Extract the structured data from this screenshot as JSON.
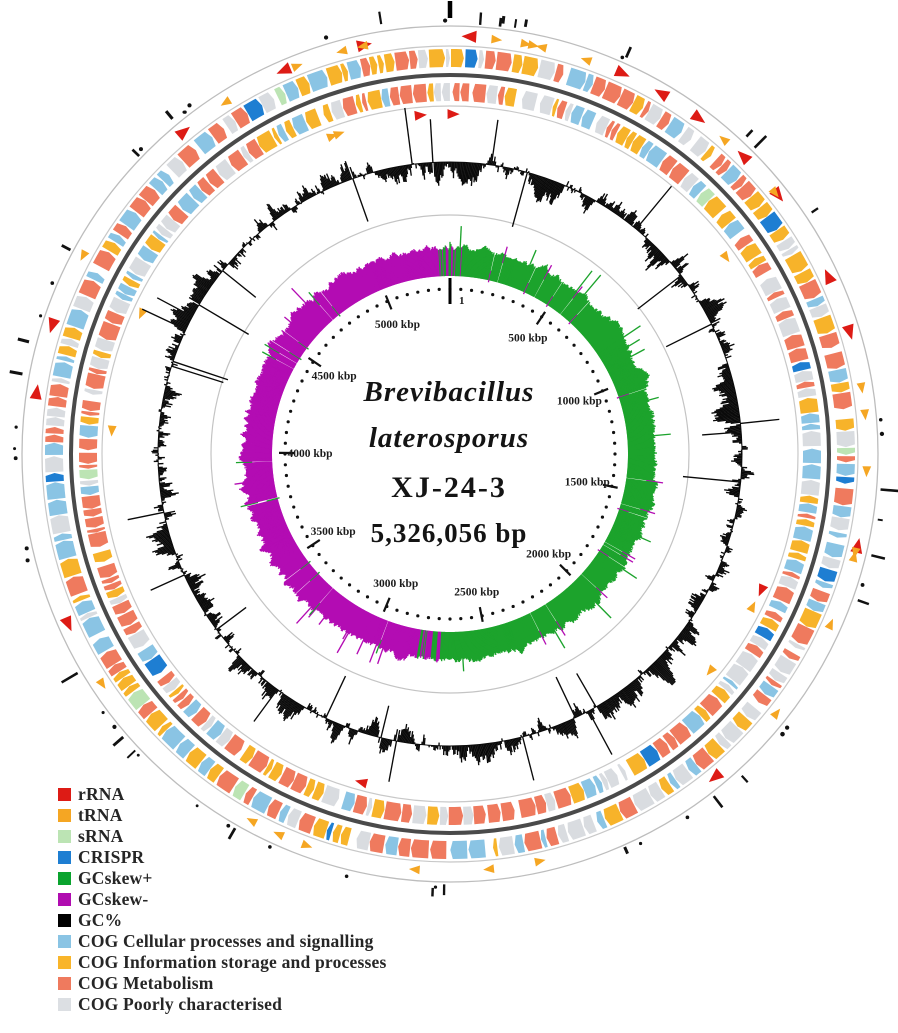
{
  "chart_data": {
    "type": "circular-genome-map",
    "organism": "Brevibacillus laterosporus",
    "organism_line1": "Brevibacillus",
    "organism_line2": "laterosporus",
    "strain": "XJ-24-3",
    "genome_size_label": "5,326,056 bp",
    "genome_size_bp": 5326056,
    "scale": {
      "unit": "kbp",
      "interval_kbp": 500,
      "origin_label": "1",
      "labels": [
        "500 kbp",
        "1000 kbp",
        "1500 kbp",
        "2000 kbp",
        "2500 kbp",
        "3000 kbp",
        "3500 kbp",
        "4000 kbp",
        "4500 kbp",
        "5000 kbp"
      ],
      "values_kbp": [
        500,
        1000,
        1500,
        2000,
        2500,
        3000,
        3500,
        4000,
        4500,
        5000
      ]
    },
    "rings_outside_in": [
      {
        "name": "outer-position-ticks",
        "description": "scattered black tick marks outside the outer circle; long black tick at origin (position 1, top)"
      },
      {
        "name": "rna-feature-ring",
        "description": "rRNA (red) and tRNA (orange) gene arrows",
        "rrna_positions_kbp_approx": [
          40,
          360,
          450,
          540,
          660,
          765,
          960,
          1080,
          1520,
          2080,
          3640,
          4120,
          4260,
          4740,
          4980,
          5150
        ]
      },
      {
        "name": "cog-forward-strand",
        "description": "CDS arrows coloured by COG category, forward strand"
      },
      {
        "name": "cog-reverse-strand",
        "description": "CDS arrows coloured by COG category, reverse strand"
      },
      {
        "name": "gc-content-ring",
        "description": "GC% plotted as black deviation from circular baseline"
      },
      {
        "name": "gc-skew-ring",
        "description": "GC skew: positive (green) approx 0-2750 kbp, negative (purple) approx 2750-5326 kbp",
        "skew_transition_kbp_approx": [
          0,
          2750
        ]
      },
      {
        "name": "scale-ring",
        "description": "dotted position circle with tick dashes every 500 kbp and labels"
      }
    ],
    "legend": [
      {
        "label": "rRNA",
        "color": "#dd1b15"
      },
      {
        "label": "tRNA",
        "color": "#f5a623"
      },
      {
        "label": "sRNA",
        "color": "#bce4b4"
      },
      {
        "label": "CRISPR",
        "color": "#1e7ed2"
      },
      {
        "label": "GCskew+",
        "color": "#0aa32e"
      },
      {
        "label": "GCskew-",
        "color": "#b00cb0"
      },
      {
        "label": "GC%",
        "color": "#000000"
      },
      {
        "label": "COG Cellular processes and signalling",
        "color": "#8ac4e4"
      },
      {
        "label": "COG Information storage and processes",
        "color": "#f9b52a"
      },
      {
        "label": "COG Metabolism",
        "color": "#ef7a5e"
      },
      {
        "label": "COG Poorly characterised",
        "color": "#dcdfe3"
      }
    ],
    "colors": {
      "gc_content": "#0a0a0a",
      "gc_skew_plus": "#1ca32c",
      "gc_skew_minus": "#b30cb3",
      "rrna": "#dd1b15",
      "trna": "#f5a623",
      "srna": "#bce4b4",
      "crispr": "#1e7ed2",
      "cog_cellular": "#8ac4e4",
      "cog_info": "#f7b32a",
      "cog_metabolism": "#ef7a5e",
      "cog_poorly": "#d9dce0",
      "ring_outline": "#c8c8c8",
      "strand_separator": "#4a4a4a",
      "tick_black": "#111111"
    }
  }
}
